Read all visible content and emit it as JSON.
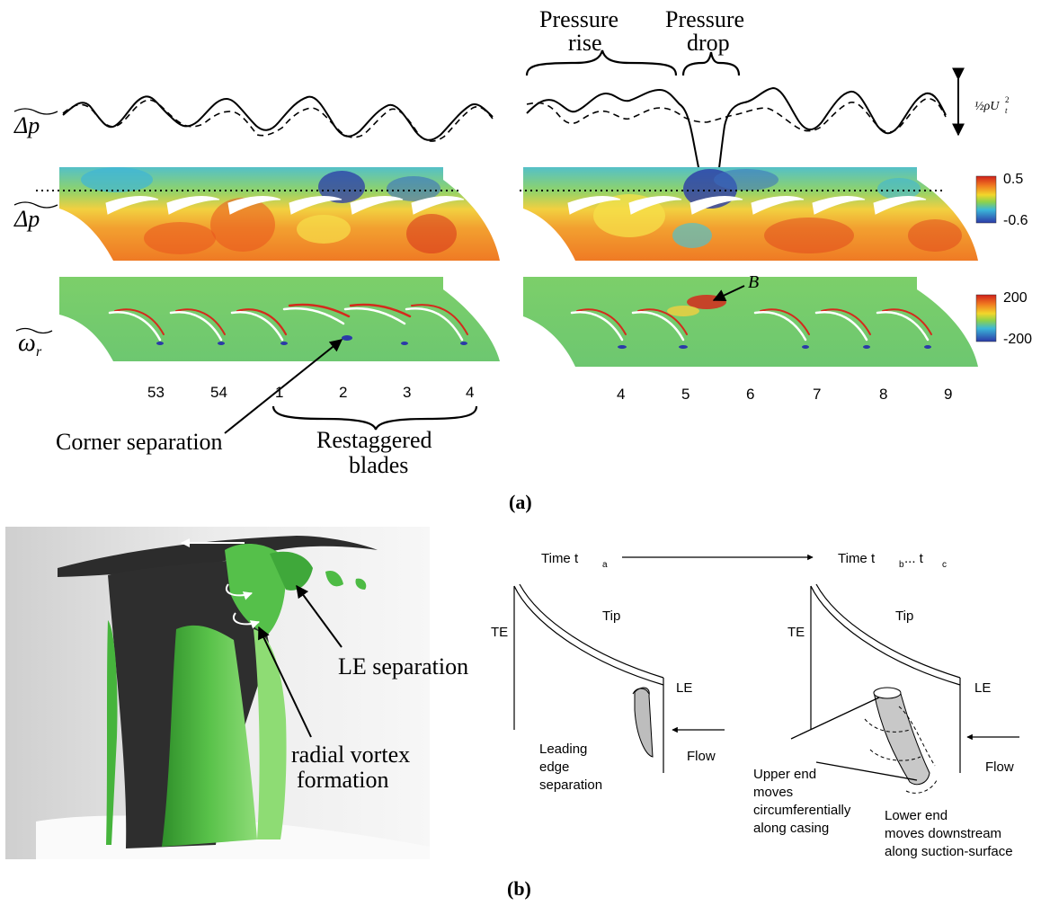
{
  "panel_a": {
    "label": "(a)",
    "annotations": {
      "pressure_rise_line1": "Pressure",
      "pressure_rise_line2": "rise",
      "pressure_drop_line1": "Pressure",
      "pressure_drop_line2": "drop",
      "corner_separation": "Corner separation",
      "restaggered_line1": "Restaggered",
      "restaggered_line2": "blades",
      "point_b": "B"
    },
    "row_labels": {
      "dp_trace": "Δp",
      "dp_contour": "Δp",
      "omega": "ω",
      "omega_sub": "r"
    },
    "scale_bar": {
      "label_prefix": "½ρU",
      "label_sub": "t",
      "label_sup": "2"
    },
    "colorbar_pressure": {
      "max": "0.5",
      "min": "-0.6"
    },
    "colorbar_vorticity": {
      "max": "200",
      "min": "-200"
    },
    "left_blade_numbers": [
      "53",
      "54",
      "1",
      "2",
      "3",
      "4"
    ],
    "right_blade_numbers": [
      "4",
      "5",
      "6",
      "7",
      "8",
      "9"
    ],
    "colors": {
      "cold": "#2b3aa8",
      "hot": "#d42a1c",
      "mid": "#f0a020",
      "neutral": "#66c77a"
    }
  },
  "panel_b": {
    "label": "(b)",
    "render_labels": {
      "le_separation": "LE separation",
      "radial_line1": "radial vortex",
      "radial_line2": "formation"
    },
    "schematic": {
      "time_a": "Time  t",
      "time_a_sub": "a",
      "time_b": "Time  t",
      "time_b_sub": "b",
      "time_ellipsis": " ...  t",
      "time_c_sub": "c",
      "left": {
        "te": "TE",
        "tip": "Tip",
        "le": "LE",
        "flow": "Flow",
        "sep_line1": "Leading",
        "sep_line2": "edge",
        "sep_line3": "separation"
      },
      "right": {
        "te": "TE",
        "tip": "Tip",
        "le": "LE",
        "flow": "Flow",
        "upper_line1": "Upper end",
        "upper_line2": "moves",
        "upper_line3": "circumferentially",
        "upper_line4": "along casing",
        "lower_line1": "Lower end",
        "lower_line2": "moves downstream",
        "lower_line3": "along suction-surface"
      }
    }
  }
}
